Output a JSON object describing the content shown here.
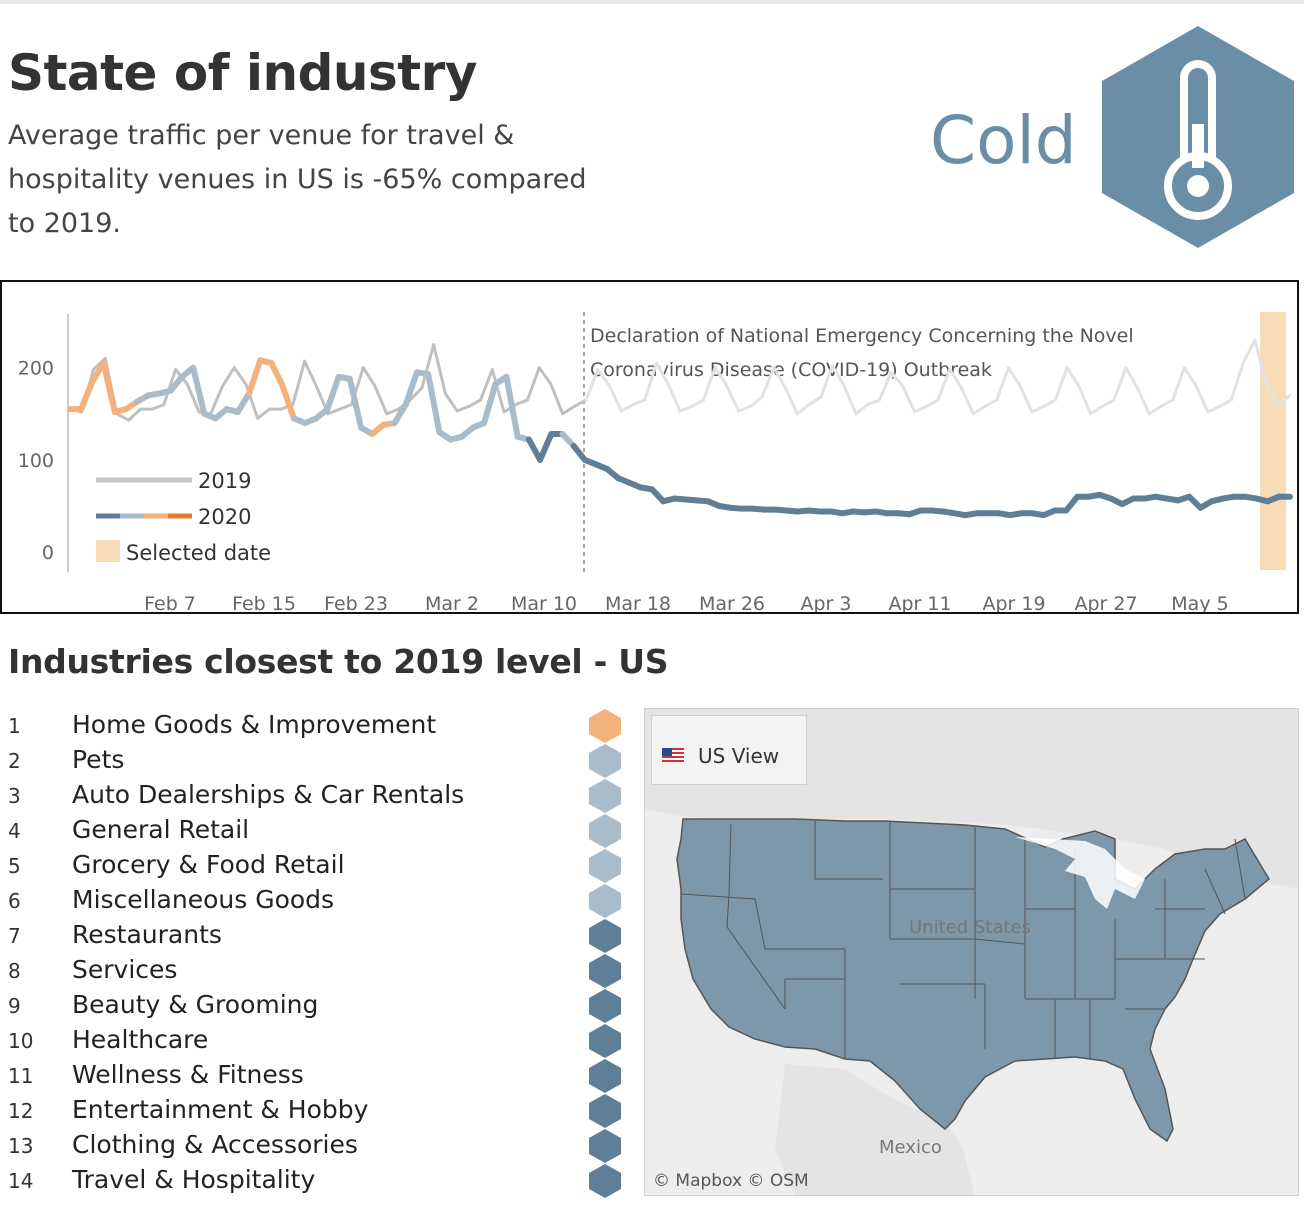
{
  "header": {
    "title": "State of industry",
    "subtitle": "Average traffic per venue for travel & hospitality venues in US is -65% compared to 2019.",
    "status": "Cold",
    "status_icon": "thermometer-icon",
    "status_color": "#6a8ea6"
  },
  "chart_data": {
    "type": "line",
    "annotation": "Declaration of National Emergency Concerning the Novel Coronavirus Disease (COVID-19) Outbreak",
    "annotation_date": "Mar 13",
    "x_ticks": [
      "Feb 7",
      "Feb 15",
      "Feb 23",
      "Mar 2",
      "Mar 10",
      "Mar 18",
      "Mar 26",
      "Apr 3",
      "Apr 11",
      "Apr 19",
      "Apr 27",
      "May 5"
    ],
    "y_ticks": [
      "0",
      "100",
      "200"
    ],
    "ylim": [
      0,
      250
    ],
    "x_start": "Jan 30",
    "x_end": "May 13",
    "legend": [
      {
        "label": "2019",
        "color": "#c8c8c8"
      },
      {
        "label": "2020",
        "colors": [
          "#5f7f97",
          "#a9bccb",
          "#f2b27a",
          "#e9762b"
        ]
      },
      {
        "label": "Selected date",
        "color": "#f6dcb6"
      }
    ],
    "selected_date": "May 12",
    "series": [
      {
        "name": "2019",
        "values": [
          155,
          152,
          198,
          210,
          150,
          143,
          155,
          155,
          160,
          198,
          182,
          152,
          150,
          180,
          200,
          182,
          145,
          155,
          155,
          160,
          207,
          180,
          150,
          155,
          160,
          200,
          180,
          150,
          155,
          165,
          178,
          225,
          172,
          153,
          158,
          165,
          198,
          152,
          160,
          165,
          200,
          182,
          150,
          158,
          165,
          198,
          180,
          153,
          160,
          165,
          205,
          182,
          153,
          158,
          165,
          200,
          180,
          153,
          158,
          168,
          200,
          178,
          150,
          160,
          168,
          202,
          180,
          150,
          160,
          165,
          195,
          180,
          152,
          158,
          165,
          198,
          178,
          150,
          158,
          165,
          200,
          180,
          152,
          158,
          165,
          200,
          180,
          150,
          158,
          165,
          200,
          178,
          150,
          158,
          165,
          200,
          180,
          152,
          158,
          165,
          205,
          230,
          182,
          160,
          170
        ]
      },
      {
        "name": "2020",
        "values": [
          155,
          155,
          185,
          205,
          152,
          155,
          163,
          170,
          172,
          175,
          190,
          200,
          150,
          145,
          155,
          152,
          172,
          208,
          205,
          180,
          145,
          140,
          145,
          155,
          190,
          188,
          135,
          128,
          138,
          140,
          160,
          195,
          193,
          130,
          122,
          125,
          135,
          140,
          182,
          190,
          125,
          122,
          100,
          128,
          128,
          115,
          100,
          95,
          90,
          80,
          75,
          70,
          68,
          55,
          58,
          57,
          56,
          55,
          50,
          48,
          47,
          47,
          46,
          46,
          45,
          44,
          45,
          44,
          44,
          42,
          44,
          43,
          44,
          42,
          42,
          41,
          45,
          45,
          44,
          42,
          40,
          42,
          42,
          42,
          40,
          42,
          42,
          40,
          45,
          45,
          60,
          60,
          62,
          58,
          52,
          58,
          58,
          60,
          58,
          56,
          60,
          48,
          55,
          58,
          60,
          60,
          58,
          55,
          60,
          60
        ],
        "segment_colors": {
          "orange": "#f2b27a",
          "light_blue": "#a9bccb",
          "dark_blue": "#5f7f97"
        }
      }
    ]
  },
  "industries": {
    "title": "Industries closest to 2019 level - US",
    "items": [
      {
        "rank": "1",
        "label": "Home Goods & Improvement",
        "color": "#f2b27a"
      },
      {
        "rank": "2",
        "label": "Pets",
        "color": "#a9bccb"
      },
      {
        "rank": "3",
        "label": "Auto Dealerships & Car Rentals",
        "color": "#a9bccb"
      },
      {
        "rank": "4",
        "label": "General Retail",
        "color": "#a9bccb"
      },
      {
        "rank": "5",
        "label": "Grocery & Food Retail",
        "color": "#a9bccb"
      },
      {
        "rank": "6",
        "label": "Miscellaneous Goods",
        "color": "#a9bccb"
      },
      {
        "rank": "7",
        "label": "Restaurants",
        "color": "#5f7f97"
      },
      {
        "rank": "8",
        "label": "Services",
        "color": "#5f7f97"
      },
      {
        "rank": "9",
        "label": "Beauty & Grooming",
        "color": "#5f7f97"
      },
      {
        "rank": "10",
        "label": "Healthcare",
        "color": "#5f7f97"
      },
      {
        "rank": "11",
        "label": "Wellness & Fitness",
        "color": "#5f7f97"
      },
      {
        "rank": "12",
        "label": "Entertainment & Hobby",
        "color": "#5f7f97"
      },
      {
        "rank": "13",
        "label": "Clothing & Accessories",
        "color": "#5f7f97"
      },
      {
        "rank": "14",
        "label": "Travel & Hospitality",
        "color": "#5f7f97"
      }
    ]
  },
  "map": {
    "view_button": "US View",
    "country_label": "United States",
    "neighbor_label": "Mexico",
    "attribution": "© Mapbox  © OSM",
    "fill_color": "#7d98ab"
  }
}
